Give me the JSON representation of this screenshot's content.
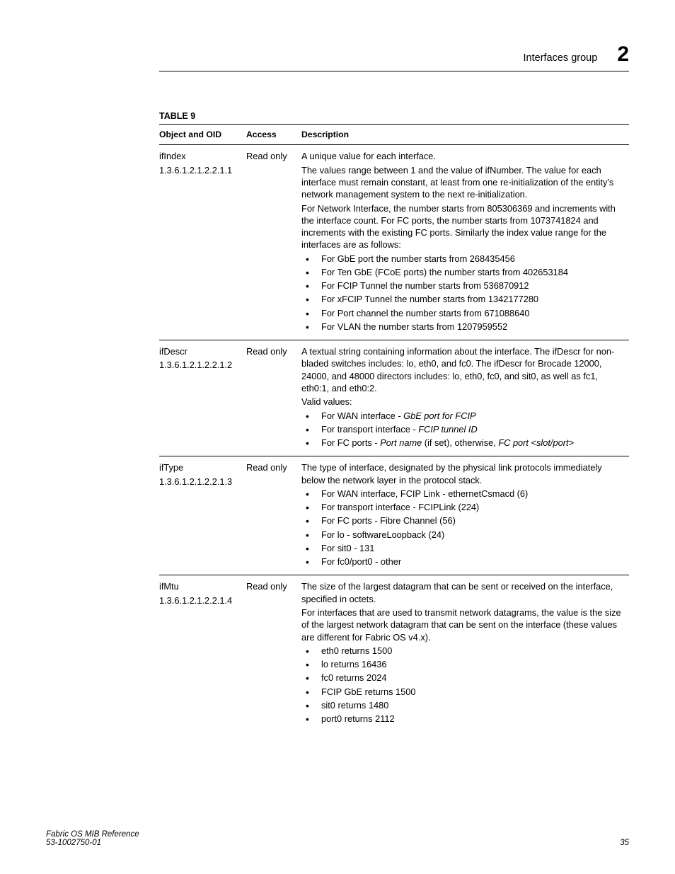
{
  "header": {
    "section": "Interfaces group",
    "chapter": "2"
  },
  "table": {
    "label": "TABLE 9",
    "headers": {
      "obj": "Object and OID",
      "acc": "Access",
      "desc": "Description"
    },
    "rows": [
      {
        "name": "ifIndex",
        "oid": "1.3.6.1.2.1.2.2.1.1",
        "access": "Read only",
        "paras": [
          "A unique value for each interface.",
          "The values range between 1 and the value of ifNumber. The value for each interface must remain constant, at least from one re-initialization of the entity's network management system to the next re-initialization.",
          "For Network Interface, the number starts from 805306369 and increments with the interface count. For FC ports, the number starts from 1073741824 and increments with the existing FC ports. Similarly the index value range for the interfaces are as follows:"
        ],
        "bullets": [
          "For GbE port the number starts from 268435456",
          "For Ten GbE (FCoE ports) the number starts from 402653184",
          "For FCIP Tunnel the number starts from 536870912",
          "For xFCIP Tunnel the number starts from 1342177280",
          "For Port channel the number starts from 671088640",
          "For VLAN the number starts from 1207959552"
        ]
      },
      {
        "name": "ifDescr",
        "oid": "1.3.6.1.2.1.2.2.1.2",
        "access": "Read only",
        "paras": [
          "A textual string containing information about the interface. The ifDescr for non-bladed switches includes: lo, eth0, and fc0. The ifDescr for Brocade 12000, 24000, and 48000 directors includes: lo, eth0, fc0, and sit0, as well as fc1, eth0:1, and eth0:2.",
          "Valid values:"
        ],
        "bullets_html": [
          "For WAN interface - <span class=\"italic\">GbE port for FCIP</span>",
          "For transport interface - <span class=\"italic\">FCIP tunnel ID</span>",
          "For FC ports - <span class=\"italic\">Port name</span> (if set), otherwise, <span class=\"italic\">FC port &lt;slot/port&gt;</span>"
        ]
      },
      {
        "name": "ifType",
        "oid": "1.3.6.1.2.1.2.2.1.3",
        "access": "Read only",
        "paras": [
          "The type of interface, designated by the physical link protocols immediately below the network layer in the protocol stack."
        ],
        "bullets": [
          "For WAN interface, FCIP Link - ethernetCsmacd (6)",
          "For transport interface - FCIPLink (224)",
          "For FC ports - Fibre Channel (56)",
          "For lo - softwareLoopback (24)",
          "For sit0 - 131",
          "For fc0/port0 - other"
        ]
      },
      {
        "name": "ifMtu",
        "oid": "1.3.6.1.2.1.2.2.1.4",
        "access": "Read only",
        "paras": [
          "The size of the largest datagram that can be sent or received on the interface, specified in octets.",
          "For interfaces that are used to transmit network datagrams, the value is the size of the largest network datagram that can be sent on the interface (these values are different for Fabric OS v4.x)."
        ],
        "bullets": [
          "eth0 returns 1500",
          "lo returns 16436",
          "fc0 returns 2024",
          "FCIP GbE returns 1500",
          "sit0 returns 1480",
          "port0 returns 2112"
        ]
      }
    ]
  },
  "footer": {
    "title": "Fabric OS MIB Reference",
    "doc": "53-1002750-01",
    "page": "35"
  }
}
